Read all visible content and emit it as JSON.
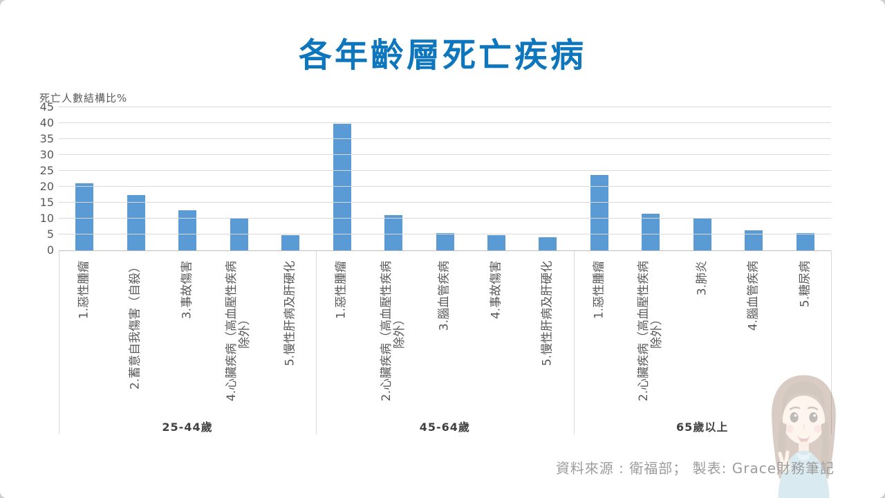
{
  "title": "各年齡層死亡疾病",
  "footer": {
    "source": "資料來源 : 衛福部；  製表: Grace財務筆記"
  },
  "colors": {
    "title_blue": "#0E76BD",
    "bar_blue": "#5B9BD5",
    "gridline": "#D9D9D9",
    "axis_text": "#595959"
  },
  "chart_data": {
    "type": "bar",
    "title": "各年齡層死亡疾病",
    "ylabel": "死亡人數結構比%",
    "xlabel": "",
    "ylim": [
      0,
      45
    ],
    "ytick_step": 5,
    "grid": true,
    "legend": "none",
    "bar_color": "#5B9BD5",
    "groups": [
      {
        "name": "25-44歲",
        "categories": [
          "1.惡性腫瘤",
          "2.蓄意自我傷害（自殺）",
          "3.事故傷害",
          "4.心臟疾病（高血壓性疾病除外）",
          "5.慢性肝病及肝硬化"
        ],
        "category_lines": [
          [
            "1.惡性腫瘤"
          ],
          [
            "2.蓄意自我傷害（自殺）"
          ],
          [
            "3.事故傷害"
          ],
          [
            "4.心臟疾病（高血壓性疾病",
            "除外）"
          ],
          [
            "5.慢性肝病及肝硬化"
          ]
        ],
        "values": [
          21.2,
          17.5,
          12.6,
          10.2,
          4.9
        ]
      },
      {
        "name": "45-64歲",
        "categories": [
          "1.惡性腫瘤",
          "2.心臟疾病（高血壓性疾病除外）",
          "3.腦血管疾病",
          "4.事故傷害",
          "5.慢性肝病及肝硬化"
        ],
        "category_lines": [
          [
            "1.惡性腫瘤"
          ],
          [
            "2.心臟疾病（高血壓性疾病",
            "除外）"
          ],
          [
            "3.腦血管疾病"
          ],
          [
            "4.事故傷害"
          ],
          [
            "5.慢性肝病及肝硬化"
          ]
        ],
        "values": [
          39.8,
          11.2,
          5.4,
          4.7,
          4.1
        ]
      },
      {
        "name": "65歲以上",
        "categories": [
          "1.惡性腫瘤",
          "2.心臟疾病（高血壓性疾病除外）",
          "3.肺炎",
          "4.腦血管疾病",
          "5.糖尿病"
        ],
        "category_lines": [
          [
            "1.惡性腫瘤"
          ],
          [
            "2.心臟疾病（高血壓性疾病",
            "除外）"
          ],
          [
            "3.肺炎"
          ],
          [
            "4.腦血管疾病"
          ],
          [
            "5.糖尿病"
          ]
        ],
        "values": [
          23.7,
          11.5,
          10.2,
          6.3,
          5.5
        ]
      }
    ]
  }
}
